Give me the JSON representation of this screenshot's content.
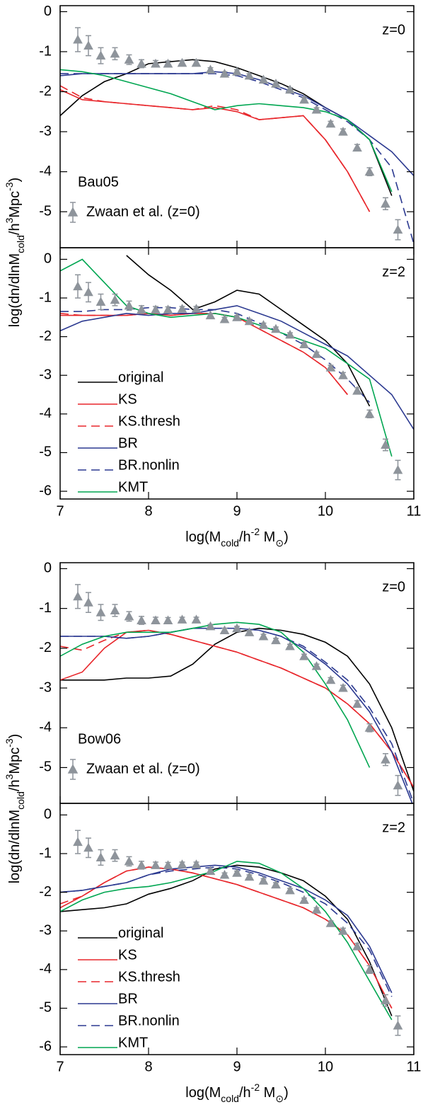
{
  "chart_data": [
    {
      "type": "line",
      "label": "Bau05",
      "redshift": "z=0",
      "ylabel": [
        "log(dn/dlnM",
        "cold",
        "/h",
        "3",
        "Mpc",
        "-3",
        ")"
      ],
      "xlim": [
        7,
        11
      ],
      "xticks": [
        7,
        8,
        9,
        10,
        11
      ],
      "ylim": [
        -5.9,
        0.15
      ],
      "yticks": [
        0,
        -1,
        -2,
        -3,
        -4,
        -5
      ],
      "x": [
        7,
        7.25,
        7.5,
        7.75,
        8,
        8.25,
        8.5,
        8.75,
        9,
        9.25,
        9.5,
        9.75,
        10,
        10.25,
        10.5,
        10.75,
        11
      ],
      "series": [
        {
          "color": "#000000",
          "dashed": false,
          "values": [
            -2.6,
            -2.1,
            -1.75,
            -1.55,
            -1.3,
            -1.25,
            -1.2,
            -1.25,
            -1.4,
            -1.6,
            -1.8,
            -2.05,
            -2.4,
            -2.7,
            -3.2,
            -4.6,
            null
          ]
        },
        {
          "color": "#e8262b",
          "dashed": false,
          "values": [
            -1.95,
            -2.2,
            -2.25,
            -2.3,
            -2.35,
            -2.4,
            -2.45,
            -2.4,
            -2.5,
            -2.7,
            -2.65,
            -2.6,
            -3.2,
            -4.0,
            -5.0,
            null,
            null
          ]
        },
        {
          "color": "#e8262b",
          "dashed": true,
          "values": [
            -1.85,
            -2.15,
            -2.25,
            -2.3,
            -2.35,
            -2.4,
            -2.45,
            -2.35,
            -2.45,
            -2.7,
            -2.65,
            -2.6,
            -3.2,
            -4.0,
            -5.0,
            null,
            null
          ]
        },
        {
          "color": "#2b3990",
          "dashed": false,
          "values": [
            -1.6,
            -1.55,
            -1.55,
            -1.55,
            -1.55,
            -1.55,
            -1.55,
            -1.5,
            -1.55,
            -1.7,
            -1.9,
            -2.1,
            -2.4,
            -2.7,
            -3.1,
            -3.5,
            -4.1
          ]
        },
        {
          "color": "#2b3990",
          "dashed": true,
          "values": [
            -1.55,
            -1.55,
            -1.55,
            -1.55,
            -1.55,
            -1.55,
            -1.55,
            -1.55,
            -1.6,
            -1.75,
            -1.95,
            -2.15,
            -2.45,
            -2.75,
            -3.2,
            -3.9,
            -5.8
          ]
        },
        {
          "color": "#00a651",
          "dashed": false,
          "values": [
            -1.45,
            -1.5,
            -1.6,
            -1.75,
            -1.9,
            -2.05,
            -2.25,
            -2.45,
            -2.35,
            -2.3,
            -2.35,
            -2.4,
            -2.5,
            -2.7,
            -3.2,
            -4.5,
            null
          ]
        }
      ],
      "points": {
        "name": "Zwaan et al. (z=0)",
        "color": "#8e949b",
        "x": [
          7.2,
          7.32,
          7.46,
          7.62,
          7.78,
          7.92,
          8.08,
          8.22,
          8.38,
          8.54,
          8.7,
          8.86,
          9.0,
          9.14,
          9.3,
          9.44,
          9.6,
          9.76,
          9.9,
          10.06,
          10.2,
          10.36,
          10.5,
          10.68,
          10.82
        ],
        "values": [
          -0.7,
          -0.85,
          -1.1,
          -1.05,
          -1.2,
          -1.3,
          -1.3,
          -1.3,
          -1.28,
          -1.28,
          -1.45,
          -1.55,
          -1.5,
          -1.6,
          -1.7,
          -1.8,
          -1.95,
          -2.2,
          -2.45,
          -2.8,
          -3.0,
          -3.4,
          -4.0,
          -4.8,
          -5.45
        ],
        "errors": [
          0.3,
          0.25,
          0.2,
          0.15,
          0.12,
          0.1,
          0.08,
          0.07,
          0.06,
          0.06,
          0.05,
          0.05,
          0.05,
          0.05,
          0.05,
          0.05,
          0.05,
          0.05,
          0.05,
          0.06,
          0.07,
          0.08,
          0.1,
          0.15,
          0.25
        ]
      }
    },
    {
      "type": "line",
      "redshift": "z=2",
      "xlabel": [
        "log(M",
        "cold",
        "/h",
        "-2",
        " M",
        "⊙",
        ")"
      ],
      "xlim": [
        7,
        11
      ],
      "xticks": [
        7,
        8,
        9,
        10,
        11
      ],
      "ylim": [
        -6.2,
        0.3
      ],
      "yticks": [
        0,
        -1,
        -2,
        -3,
        -4,
        -5,
        -6
      ],
      "x": [
        7,
        7.25,
        7.5,
        7.75,
        8,
        8.25,
        8.5,
        8.75,
        9,
        9.25,
        9.5,
        9.75,
        10,
        10.25,
        10.5,
        10.75,
        11
      ],
      "series": [
        {
          "name": "original",
          "color": "#000000",
          "dashed": false,
          "values": [
            null,
            null,
            null,
            0.1,
            -0.4,
            -0.8,
            -1.3,
            -1.1,
            -0.8,
            -0.9,
            -1.3,
            -1.7,
            -2.1,
            -2.7,
            -3.8,
            null,
            null
          ]
        },
        {
          "name": "KS",
          "color": "#e8262b",
          "dashed": false,
          "values": [
            -1.45,
            -1.45,
            -1.45,
            -1.45,
            -1.4,
            -1.45,
            -1.4,
            -1.4,
            -1.5,
            -1.8,
            -2.1,
            -2.4,
            -2.8,
            -3.5,
            null,
            null,
            null
          ]
        },
        {
          "name": "KS.thresh",
          "color": "#e8262b",
          "dashed": true,
          "values": [
            -1.4,
            -1.45,
            -1.45,
            -1.45,
            -1.4,
            -1.45,
            -1.4,
            -1.4,
            -1.5,
            -1.8,
            -2.1,
            -2.4,
            -2.8,
            -3.5,
            null,
            null,
            null
          ]
        },
        {
          "name": "BR",
          "color": "#2b3990",
          "dashed": false,
          "values": [
            -1.85,
            -1.6,
            -1.5,
            -1.4,
            -1.45,
            -1.4,
            -1.4,
            -1.3,
            -1.2,
            -1.4,
            -1.6,
            -1.9,
            -2.2,
            -2.5,
            -3.0,
            -3.5,
            -4.4
          ]
        },
        {
          "name": "BR.nonlin",
          "color": "#2b3990",
          "dashed": true,
          "values": [
            -1.35,
            -1.35,
            -1.3,
            -1.3,
            -1.25,
            -1.25,
            -1.3,
            -1.3,
            -1.4,
            -1.65,
            -1.9,
            -2.2,
            -2.6,
            -3.1,
            -3.7,
            null,
            null
          ]
        },
        {
          "name": "KMT",
          "color": "#00a651",
          "dashed": false,
          "values": [
            -0.3,
            0,
            -0.6,
            -1.2,
            -1.4,
            -1.5,
            -1.45,
            -1.4,
            -1.5,
            -1.7,
            -1.9,
            -2.1,
            -2.3,
            -2.7,
            -3.1,
            -5.1,
            null
          ]
        }
      ],
      "points": {
        "color": "#8e949b",
        "x": [
          7.2,
          7.32,
          7.46,
          7.62,
          7.78,
          7.92,
          8.08,
          8.22,
          8.38,
          8.54,
          8.7,
          8.86,
          9.0,
          9.14,
          9.3,
          9.44,
          9.6,
          9.76,
          9.9,
          10.06,
          10.2,
          10.36,
          10.5,
          10.68,
          10.82
        ],
        "values": [
          -0.7,
          -0.85,
          -1.1,
          -1.05,
          -1.2,
          -1.3,
          -1.3,
          -1.3,
          -1.28,
          -1.28,
          -1.45,
          -1.55,
          -1.5,
          -1.6,
          -1.7,
          -1.8,
          -1.95,
          -2.2,
          -2.45,
          -2.8,
          -3.0,
          -3.4,
          -4.0,
          -4.8,
          -5.45
        ],
        "errors": [
          0.3,
          0.25,
          0.2,
          0.15,
          0.12,
          0.1,
          0.08,
          0.07,
          0.06,
          0.06,
          0.05,
          0.05,
          0.05,
          0.05,
          0.05,
          0.05,
          0.05,
          0.05,
          0.05,
          0.06,
          0.07,
          0.08,
          0.1,
          0.15,
          0.25
        ]
      }
    },
    {
      "type": "line",
      "label": "Bow06",
      "redshift": "z=0",
      "ylabel": [
        "log(dn/dlnM",
        "cold",
        "/h",
        "3",
        "Mpc",
        "-3",
        ")"
      ],
      "xlim": [
        7,
        11
      ],
      "xticks": [
        7,
        8,
        9,
        10,
        11
      ],
      "ylim": [
        -5.9,
        0.15
      ],
      "yticks": [
        0,
        -1,
        -2,
        -3,
        -4,
        -5
      ],
      "x": [
        7,
        7.25,
        7.5,
        7.75,
        8,
        8.25,
        8.5,
        8.75,
        9,
        9.25,
        9.5,
        9.75,
        10,
        10.25,
        10.5,
        10.75,
        11
      ],
      "series": [
        {
          "color": "#000000",
          "dashed": false,
          "values": [
            -2.8,
            -2.8,
            -2.8,
            -2.75,
            -2.75,
            -2.7,
            -2.4,
            -1.9,
            -1.6,
            -1.5,
            -1.55,
            -1.65,
            -1.85,
            -2.2,
            -2.9,
            -4.0,
            -5.6
          ]
        },
        {
          "color": "#e8262b",
          "dashed": false,
          "values": [
            -2.8,
            -2.6,
            -2.0,
            -1.6,
            -1.55,
            -1.65,
            -1.8,
            -1.95,
            -2.1,
            -2.3,
            -2.5,
            -2.75,
            -3.0,
            -3.4,
            -3.9,
            -4.6,
            -5.5
          ]
        },
        {
          "color": "#e8262b",
          "dashed": true,
          "values": [
            -1.95,
            -2.05,
            -1.8,
            -1.6,
            -1.55,
            -1.65,
            -1.8,
            -1.95,
            -2.1,
            -2.3,
            -2.5,
            -2.75,
            -3.0,
            -3.4,
            -3.9,
            -4.6,
            -5.5
          ]
        },
        {
          "color": "#2b3990",
          "dashed": false,
          "values": [
            -1.7,
            -1.7,
            -1.7,
            -1.75,
            -1.7,
            -1.6,
            -1.5,
            -1.5,
            -1.5,
            -1.55,
            -1.7,
            -2.0,
            -2.4,
            -2.9,
            -3.6,
            -4.6,
            -6.0
          ]
        },
        {
          "color": "#2b3990",
          "dashed": true,
          "values": [
            -1.7,
            -1.7,
            -1.7,
            -1.75,
            -1.7,
            -1.6,
            -1.5,
            -1.5,
            -1.5,
            -1.55,
            -1.7,
            -1.95,
            -2.35,
            -2.8,
            -3.5,
            -4.4,
            -5.9
          ]
        },
        {
          "color": "#00a651",
          "dashed": false,
          "values": [
            -2.2,
            -1.9,
            -1.7,
            -1.6,
            -1.6,
            -1.6,
            -1.5,
            -1.4,
            -1.35,
            -1.4,
            -1.6,
            -2.1,
            -2.9,
            -3.8,
            -5.0,
            null,
            null
          ]
        }
      ],
      "points": {
        "name": "Zwaan et al. (z=0)",
        "color": "#8e949b",
        "x": [
          7.2,
          7.32,
          7.46,
          7.62,
          7.78,
          7.92,
          8.08,
          8.22,
          8.38,
          8.54,
          8.7,
          8.86,
          9.0,
          9.14,
          9.3,
          9.44,
          9.6,
          9.76,
          9.9,
          10.06,
          10.2,
          10.36,
          10.5,
          10.68,
          10.82
        ],
        "values": [
          -0.7,
          -0.85,
          -1.1,
          -1.05,
          -1.2,
          -1.3,
          -1.3,
          -1.3,
          -1.28,
          -1.28,
          -1.45,
          -1.55,
          -1.5,
          -1.6,
          -1.7,
          -1.8,
          -1.95,
          -2.2,
          -2.45,
          -2.8,
          -3.0,
          -3.4,
          -4.0,
          -4.8,
          -5.45
        ],
        "errors": [
          0.3,
          0.25,
          0.2,
          0.15,
          0.12,
          0.1,
          0.08,
          0.07,
          0.06,
          0.06,
          0.05,
          0.05,
          0.05,
          0.05,
          0.05,
          0.05,
          0.05,
          0.05,
          0.05,
          0.06,
          0.07,
          0.08,
          0.1,
          0.15,
          0.25
        ]
      }
    },
    {
      "type": "line",
      "redshift": "z=2",
      "xlabel": [
        "log(M",
        "cold",
        "/h",
        "-2",
        " M",
        "⊙",
        ")"
      ],
      "xlim": [
        7,
        11
      ],
      "xticks": [
        7,
        8,
        9,
        10,
        11
      ],
      "ylim": [
        -6.2,
        0.3
      ],
      "yticks": [
        0,
        -1,
        -2,
        -3,
        -4,
        -5,
        -6
      ],
      "x": [
        7,
        7.25,
        7.5,
        7.75,
        8,
        8.25,
        8.5,
        8.75,
        9,
        9.25,
        9.5,
        9.75,
        10,
        10.25,
        10.5,
        10.75,
        11
      ],
      "series": [
        {
          "name": "original",
          "color": "#000000",
          "dashed": false,
          "values": [
            -2.5,
            -2.45,
            -2.4,
            -2.3,
            -2.05,
            -1.9,
            -1.7,
            -1.4,
            -1.3,
            -1.35,
            -1.5,
            -1.7,
            -2.1,
            -2.7,
            -3.8,
            -5.2,
            null
          ]
        },
        {
          "name": "KS",
          "color": "#e8262b",
          "dashed": false,
          "values": [
            -2.4,
            -2.1,
            -1.75,
            -1.45,
            -1.35,
            -1.4,
            -1.5,
            -1.65,
            -1.8,
            -2.0,
            -2.2,
            -2.4,
            -2.7,
            -3.1,
            -3.9,
            -5.0,
            null
          ]
        },
        {
          "name": "KS.thresh",
          "color": "#e8262b",
          "dashed": true,
          "values": [
            -2.3,
            -2.1,
            -1.75,
            -1.45,
            -1.35,
            -1.4,
            -1.5,
            -1.65,
            -1.8,
            -2.0,
            -2.2,
            -2.4,
            -2.7,
            -3.1,
            -3.9,
            -5.0,
            null
          ]
        },
        {
          "name": "BR",
          "color": "#2b3990",
          "dashed": false,
          "values": [
            -2.0,
            -1.95,
            -1.85,
            -1.75,
            -1.55,
            -1.4,
            -1.35,
            -1.3,
            -1.35,
            -1.5,
            -1.7,
            -1.9,
            -2.2,
            -2.6,
            -3.4,
            -4.6,
            null
          ]
        },
        {
          "name": "BR.nonlin",
          "color": "#2b3990",
          "dashed": true,
          "values": [
            -2.0,
            -1.95,
            -1.85,
            -1.75,
            -1.55,
            -1.45,
            -1.4,
            -1.35,
            -1.4,
            -1.55,
            -1.75,
            -2.0,
            -2.3,
            -2.8,
            -3.5,
            -4.7,
            null
          ]
        },
        {
          "name": "KMT",
          "color": "#00a651",
          "dashed": false,
          "values": [
            -2.5,
            -2.2,
            -2.0,
            -1.9,
            -1.85,
            -1.75,
            -1.6,
            -1.45,
            -1.2,
            -1.25,
            -1.5,
            -1.9,
            -2.5,
            -3.3,
            -4.3,
            -5.3,
            null
          ]
        }
      ],
      "points": {
        "color": "#8e949b",
        "x": [
          7.2,
          7.32,
          7.46,
          7.62,
          7.78,
          7.92,
          8.08,
          8.22,
          8.38,
          8.54,
          8.7,
          8.86,
          9.0,
          9.14,
          9.3,
          9.44,
          9.6,
          9.76,
          9.9,
          10.06,
          10.2,
          10.36,
          10.5,
          10.68,
          10.82
        ],
        "values": [
          -0.7,
          -0.85,
          -1.1,
          -1.05,
          -1.2,
          -1.3,
          -1.3,
          -1.3,
          -1.28,
          -1.28,
          -1.45,
          -1.55,
          -1.5,
          -1.6,
          -1.7,
          -1.8,
          -1.95,
          -2.2,
          -2.45,
          -2.8,
          -3.0,
          -3.4,
          -4.0,
          -4.8,
          -5.45
        ],
        "errors": [
          0.3,
          0.25,
          0.2,
          0.15,
          0.12,
          0.1,
          0.08,
          0.07,
          0.06,
          0.06,
          0.05,
          0.05,
          0.05,
          0.05,
          0.05,
          0.05,
          0.05,
          0.05,
          0.05,
          0.06,
          0.07,
          0.08,
          0.1,
          0.15,
          0.25
        ]
      }
    }
  ]
}
